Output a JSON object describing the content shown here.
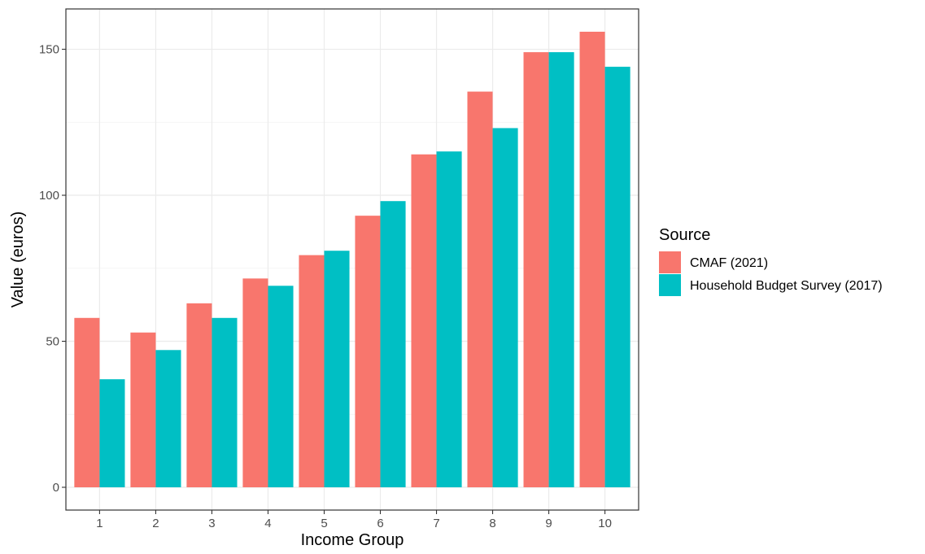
{
  "chart_data": {
    "type": "bar",
    "categories": [
      "1",
      "2",
      "3",
      "4",
      "5",
      "6",
      "7",
      "8",
      "9",
      "10"
    ],
    "series": [
      {
        "name": "CMAF (2021)",
        "color": "#F8766D",
        "values": [
          58,
          53,
          63,
          71.5,
          79.5,
          93,
          114,
          135.5,
          149,
          156
        ]
      },
      {
        "name": "Household Budget Survey (2017)",
        "color": "#00BFC4",
        "values": [
          37,
          47,
          58,
          69,
          81,
          98,
          115,
          123,
          149,
          144
        ]
      }
    ],
    "xlabel": "Income Group",
    "ylabel": "Value (euros)",
    "ylim": [
      -7.8,
      163.8
    ],
    "yticks": [
      0,
      50,
      100,
      150
    ],
    "legend": {
      "title": "Source",
      "position": "right"
    },
    "grid": true
  }
}
